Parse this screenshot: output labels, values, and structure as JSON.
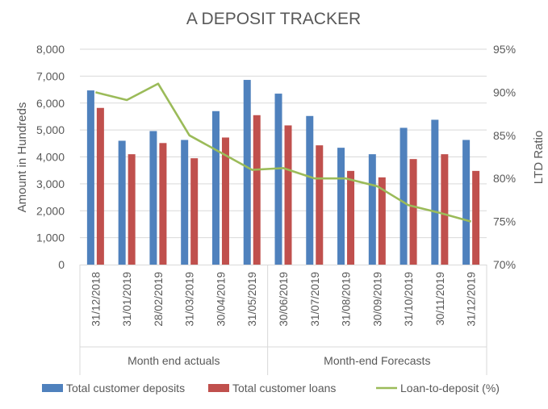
{
  "chart_data": {
    "type": "bar+line",
    "title": "A DEPOSIT TRACKER",
    "ylabel": "Amount in Hundreds",
    "y2label": "LTD Ratio",
    "ylim": [
      0,
      8000
    ],
    "yticks": [
      "0",
      "1,000",
      "2,000",
      "3,000",
      "4,000",
      "5,000",
      "6,000",
      "7,000",
      "8,000"
    ],
    "y2lim": [
      70,
      95
    ],
    "y2ticks": [
      "70%",
      "75%",
      "80%",
      "85%",
      "90%",
      "95%"
    ],
    "grid": true,
    "legend_position": "bottom",
    "categories": [
      "31/12/2018",
      "31/01/2019",
      "28/02/2019",
      "31/03/2019",
      "30/04/2019",
      "31/05/2019",
      "30/06/2019",
      "31/07/2019",
      "31/08/2019",
      "30/09/2019",
      "31/10/2019",
      "30/11/2019",
      "31/12/2019"
    ],
    "groups": [
      {
        "label": "Month end actuals",
        "count": 6
      },
      {
        "label": "Month-end Forecasts",
        "count": 7
      }
    ],
    "series": [
      {
        "name": "Total customer deposits",
        "type": "bar",
        "axis": "left",
        "color": "#4f81bd",
        "values": [
          6470,
          4600,
          4960,
          4630,
          5700,
          6860,
          6350,
          5520,
          4340,
          4100,
          5080,
          5380,
          4630
        ]
      },
      {
        "name": "Total customer loans",
        "type": "bar",
        "axis": "left",
        "color": "#c0504d",
        "values": [
          5820,
          4100,
          4515,
          3950,
          4720,
          5550,
          5170,
          4430,
          3480,
          3240,
          3920,
          4100,
          3480
        ]
      },
      {
        "name": "Loan-to-deposit (%)",
        "type": "line",
        "axis": "right",
        "color": "#9bbb59",
        "values": [
          90,
          89.1,
          91,
          85,
          83,
          81,
          81.2,
          80,
          80,
          79.1,
          76.9,
          76,
          75
        ]
      }
    ]
  }
}
